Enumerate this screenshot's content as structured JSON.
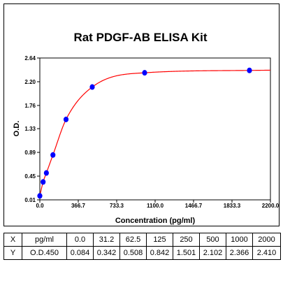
{
  "title": "Rat PDGF-AB ELISA Kit",
  "chart_data": {
    "type": "scatter",
    "title": "Rat PDGF-AB ELISA Kit",
    "xlabel": "Concentration (pg/ml)",
    "ylabel": "O.D.",
    "xlim": [
      0,
      2200
    ],
    "ylim": [
      0.01,
      2.64
    ],
    "x_ticks": [
      "0.0",
      "366.7",
      "733.3",
      "1100.0",
      "1466.7",
      "1833.3",
      "2200.0"
    ],
    "y_ticks": [
      "0.01",
      "0.45",
      "0.89",
      "1.33",
      "1.76",
      "2.20",
      "2.64"
    ],
    "x_tick_values": [
      0,
      366.7,
      733.3,
      1100,
      1466.7,
      1833.3,
      2200
    ],
    "y_tick_values": [
      0.01,
      0.45,
      0.89,
      1.33,
      1.76,
      2.2,
      2.64
    ],
    "grid": false,
    "series": [
      {
        "x": [
          0,
          31.2,
          62.5,
          125,
          250,
          500,
          1000,
          2000
        ],
        "y": [
          0.084,
          0.342,
          0.508,
          0.842,
          1.501,
          2.102,
          2.366,
          2.41
        ],
        "color": "#0000ff"
      }
    ],
    "fit_color": "#ff0000"
  },
  "table": {
    "rows": [
      {
        "axis": "X",
        "unit": "pg/ml",
        "values": [
          "0.0",
          "31.2",
          "62.5",
          "125",
          "250",
          "500",
          "1000",
          "2000"
        ]
      },
      {
        "axis": "Y",
        "unit": "O.D.450",
        "values": [
          "0.084",
          "0.342",
          "0.508",
          "0.842",
          "1.501",
          "2.102",
          "2.366",
          "2.410"
        ]
      }
    ]
  }
}
